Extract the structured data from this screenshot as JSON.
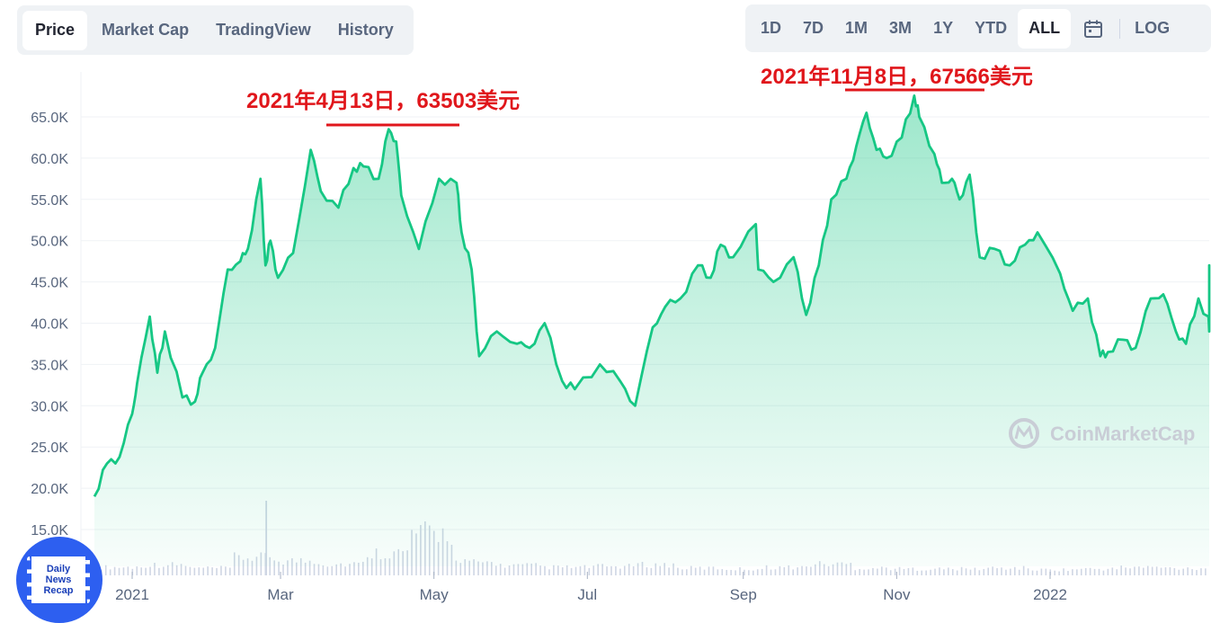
{
  "tabs": [
    {
      "label": "Price",
      "active": true
    },
    {
      "label": "Market Cap",
      "active": false
    },
    {
      "label": "TradingView",
      "active": false
    },
    {
      "label": "History",
      "active": false
    }
  ],
  "ranges": [
    {
      "label": "1D",
      "active": false
    },
    {
      "label": "7D",
      "active": false
    },
    {
      "label": "1M",
      "active": false
    },
    {
      "label": "3M",
      "active": false
    },
    {
      "label": "1Y",
      "active": false
    },
    {
      "label": "YTD",
      "active": false
    },
    {
      "label": "ALL",
      "active": true
    }
  ],
  "calendar_icon": "calendar-icon",
  "log_label": "LOG",
  "watermark": {
    "text": "CoinMarketCap",
    "icon": "coinmarketcap-logo-icon"
  },
  "badge": {
    "lines": [
      "Daily",
      "News",
      "Recap"
    ],
    "icon": "film-strip-icon"
  },
  "colors": {
    "line": "#16c784",
    "annotation": "#e0161b",
    "volume": "#cfd6e4"
  },
  "annotations": [
    {
      "text": "2021年4月13日，63503美元",
      "date": "2021-04-13",
      "value": 63503
    },
    {
      "text": "2021年11月8日，67566美元",
      "date": "2021-11-08",
      "value": 67566
    }
  ],
  "chart_data": {
    "type": "area",
    "title": "",
    "xlabel": "",
    "ylabel": "",
    "ylim": [
      12000,
      70000
    ],
    "yticks": [
      "15.0K",
      "20.0K",
      "25.0K",
      "30.0K",
      "35.0K",
      "40.0K",
      "45.0K",
      "50.0K",
      "55.0K",
      "60.0K",
      "65.0K"
    ],
    "ytick_values": [
      15000,
      20000,
      25000,
      30000,
      35000,
      40000,
      45000,
      50000,
      55000,
      60000,
      65000
    ],
    "xticks": [
      "2021",
      "Mar",
      "May",
      "Jul",
      "Sep",
      "Nov",
      "2022"
    ],
    "xtick_dates": [
      "2021-01-01",
      "2021-03-01",
      "2021-05-01",
      "2021-07-01",
      "2021-09-01",
      "2021-11-01",
      "2022-01-01"
    ],
    "grid": true,
    "series": [
      {
        "x": [
          "2020-12-17",
          "2020-12-22",
          "2020-12-27",
          "2021-01-01",
          "2021-01-03",
          "2021-01-08",
          "2021-01-11",
          "2021-01-14",
          "2021-01-21",
          "2021-01-26",
          "2021-01-29",
          "2021-02-03",
          "2021-02-08",
          "2021-02-13",
          "2021-02-16",
          "2021-02-21",
          "2021-02-23",
          "2021-02-25",
          "2021-02-28",
          "2021-03-06",
          "2021-03-13",
          "2021-03-17",
          "2021-03-24",
          "2021-03-30",
          "2021-04-03",
          "2021-04-09",
          "2021-04-13",
          "2021-04-16",
          "2021-04-18",
          "2021-04-25",
          "2021-05-03",
          "2021-05-10",
          "2021-05-12",
          "2021-05-16",
          "2021-05-19",
          "2021-05-26",
          "2021-06-03",
          "2021-06-08",
          "2021-06-14",
          "2021-06-21",
          "2021-06-26",
          "2021-07-06",
          "2021-07-14",
          "2021-07-20",
          "2021-07-27",
          "2021-08-01",
          "2021-08-07",
          "2021-08-14",
          "2021-08-19",
          "2021-08-23",
          "2021-08-28",
          "2021-09-06",
          "2021-09-07",
          "2021-09-13",
          "2021-09-21",
          "2021-09-26",
          "2021-10-01",
          "2021-10-06",
          "2021-10-12",
          "2021-10-16",
          "2021-10-20",
          "2021-10-24",
          "2021-10-28",
          "2021-11-03",
          "2021-11-08",
          "2021-11-10",
          "2021-11-16",
          "2021-11-19",
          "2021-11-23",
          "2021-11-26",
          "2021-11-30",
          "2021-12-04",
          "2021-12-10",
          "2021-12-16",
          "2021-12-22",
          "2021-12-27",
          "2022-01-05",
          "2022-01-10",
          "2022-01-16",
          "2022-01-21",
          "2022-01-24",
          "2022-01-30",
          "2022-02-04",
          "2022-02-10",
          "2022-02-15",
          "2022-02-20",
          "2022-02-24",
          "2022-03-01",
          "2022-03-07",
          "2022-03-15",
          "2022-03-21",
          "2022-03-25",
          "2022-03-29",
          "2022-04-01"
        ],
        "values": [
          19000,
          23000,
          23800,
          29000,
          32800,
          40800,
          34000,
          39000,
          31000,
          30500,
          34000,
          37000,
          46500,
          47500,
          49000,
          57500,
          47000,
          50000,
          45500,
          48500,
          61000,
          56000,
          54000,
          58800,
          59000,
          57500,
          63503,
          62000,
          55500,
          49000,
          57500,
          57000,
          51000,
          46500,
          36000,
          39000,
          37500,
          37000,
          40000,
          33000,
          32000,
          35000,
          33000,
          30000,
          39500,
          42000,
          43000,
          47000,
          45500,
          49500,
          48000,
          52000,
          46500,
          45000,
          48000,
          41000,
          47000,
          55000,
          57500,
          61500,
          65500,
          61000,
          60000,
          62500,
          67566,
          65000,
          60500,
          57000,
          57500,
          55000,
          58000,
          48000,
          49000,
          47000,
          49500,
          51000,
          46000,
          41500,
          43000,
          36000,
          36500,
          38000,
          37000,
          43000,
          43500,
          39000,
          37500,
          43000,
          39000,
          41000,
          44000,
          45000,
          47000,
          39200
        ]
      }
    ],
    "volume_approx": [
      1.0,
      1.3,
      0.9,
      2.2,
      1.8,
      1.4,
      2.8,
      5.2,
      1.6,
      1.2,
      1.0,
      1.1,
      1.3,
      0.9,
      0.8,
      1.0,
      1.4,
      0.9,
      0.8,
      0.8,
      0.9,
      0.7,
      0.8,
      1.0,
      0.9
    ]
  }
}
